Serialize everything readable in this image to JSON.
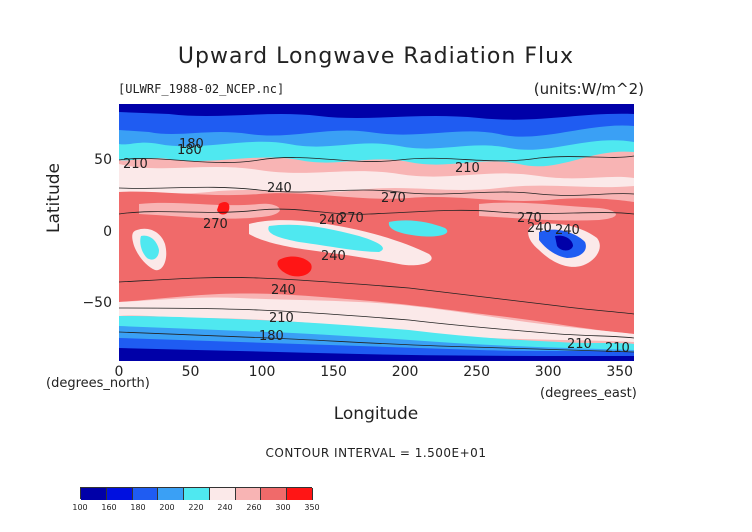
{
  "title": "Upward Longwave Radiation Flux",
  "source_file": "[ULWRF_1988-02_NCEP.nc]",
  "units": "(units:W/m^2)",
  "contour_interval_text": "CONTOUR INTERVAL = 1.500E+01",
  "chart_data": {
    "type": "heatmap",
    "title": "Upward Longwave Radiation Flux",
    "xlabel": "Longitude",
    "ylabel": "Latitude",
    "x_unit": "(degrees_east)",
    "y_unit": "(degrees_north)",
    "xlim": [
      0,
      360
    ],
    "ylim": [
      -90,
      90
    ],
    "x_ticks": [
      0,
      50,
      100,
      150,
      200,
      250,
      300,
      350
    ],
    "y_ticks": [
      -50,
      0,
      50
    ],
    "contour_labels": [
      "180",
      "210",
      "240",
      "270",
      "240",
      "270",
      "240",
      "270",
      "240",
      "210",
      "180",
      "210",
      "180",
      "240",
      "210",
      "270",
      "240",
      "210"
    ],
    "colorbar": {
      "levels": [
        100,
        160,
        180,
        200,
        220,
        240,
        260,
        300,
        350
      ],
      "colors": [
        "#0000a8",
        "#0010e0",
        "#1f5cf2",
        "#3aa0f5",
        "#4fe8f0",
        "#fbe9e9",
        "#f8b4b4",
        "#f06a6a",
        "#ff1515"
      ]
    }
  }
}
